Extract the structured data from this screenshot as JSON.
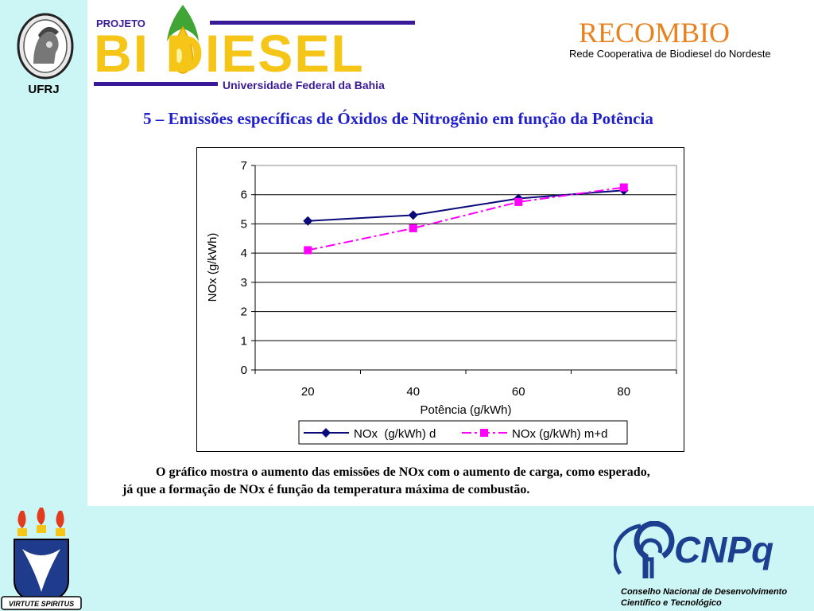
{
  "header": {
    "ufrj_label": "UFRJ",
    "projeto_label": "PROJETO",
    "biodiesel_label": "BI DIESEL",
    "university_label": "Universidade Federal da Bahia",
    "recombio_title": "RECOMBIO",
    "recombio_subtitle": "Rede Cooperativa de Biodiesel do Nordeste"
  },
  "slide": {
    "title": "5 – Emissões específicas de Óxidos de Nitrogênio em função da Potência",
    "caption_line1": "O gráfico mostra o aumento das emissões de NOx  com o aumento de carga, como esperado,",
    "caption_line2": "já que a formação de NOx é função da temperatura máxima de combustão."
  },
  "footer": {
    "ufrj_motto": "VIRTUTE SPIRITUS",
    "cnpq_label": "CNPq",
    "cnpq_line1": "Conselho Nacional de Desenvolvimento",
    "cnpq_line2": "Científico e Tecnológico"
  },
  "colors": {
    "band": "#ccf5f5",
    "title_blue": "#2020cc",
    "series_d": "#0a0a7a",
    "series_md": "#ff00ff",
    "recombio_orange": "#e8821e",
    "projeto_purple": "#3b1a99",
    "cnpq_blue": "#1d3f8f"
  },
  "chart_data": {
    "type": "line",
    "x": [
      20,
      40,
      60,
      80
    ],
    "xticks": [
      "20",
      "40",
      "60",
      "80"
    ],
    "yticks": [
      "0",
      "1",
      "2",
      "3",
      "4",
      "5",
      "6",
      "7"
    ],
    "ylim": [
      0,
      7
    ],
    "xlabel": "Potência (g/kWh)",
    "ylabel": "NOx  (g/kWh)",
    "grid": "horizontal",
    "legend_position": "bottom",
    "series": [
      {
        "name": "NOx  (g/kWh) d",
        "values": [
          5.1,
          5.3,
          5.87,
          6.15
        ],
        "color": "#0a0a7a",
        "marker": "diamond",
        "line": "solid"
      },
      {
        "name": "NOx (g/kWh) m+d",
        "values": [
          4.1,
          4.85,
          5.75,
          6.25
        ],
        "color": "#ff00ff",
        "marker": "square",
        "line": "dashdot"
      }
    ]
  }
}
